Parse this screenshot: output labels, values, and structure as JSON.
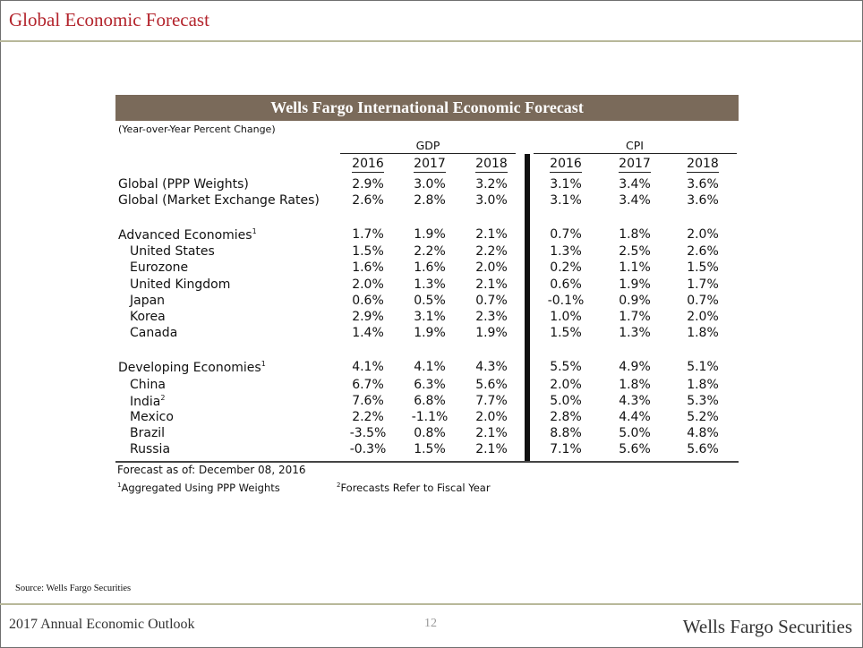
{
  "page_title": "Global Economic Forecast",
  "table": {
    "title": "Wells Fargo International Economic Forecast",
    "subtitle": "(Year-over-Year Percent Change)",
    "group_headers": {
      "gdp": "GDP",
      "cpi": "CPI"
    },
    "years": [
      "2016",
      "2017",
      "2018",
      "2016",
      "2017",
      "2018"
    ],
    "rows": [
      {
        "label": "Global (PPP Weights)",
        "sup": "",
        "indent": false,
        "values": [
          "2.9%",
          "3.0%",
          "3.2%",
          "3.1%",
          "3.4%",
          "3.6%"
        ]
      },
      {
        "label": "Global (Market Exchange Rates)",
        "sup": "",
        "indent": false,
        "values": [
          "2.6%",
          "2.8%",
          "3.0%",
          "3.1%",
          "3.4%",
          "3.6%"
        ]
      },
      {
        "label": "Advanced Economies",
        "sup": "1",
        "indent": false,
        "values": [
          "1.7%",
          "1.9%",
          "2.1%",
          "0.7%",
          "1.8%",
          "2.0%"
        ]
      },
      {
        "label": "United States",
        "sup": "",
        "indent": true,
        "values": [
          "1.5%",
          "2.2%",
          "2.2%",
          "1.3%",
          "2.5%",
          "2.6%"
        ]
      },
      {
        "label": "Eurozone",
        "sup": "",
        "indent": true,
        "values": [
          "1.6%",
          "1.6%",
          "2.0%",
          "0.2%",
          "1.1%",
          "1.5%"
        ]
      },
      {
        "label": "United Kingdom",
        "sup": "",
        "indent": true,
        "values": [
          "2.0%",
          "1.3%",
          "2.1%",
          "0.6%",
          "1.9%",
          "1.7%"
        ]
      },
      {
        "label": "Japan",
        "sup": "",
        "indent": true,
        "values": [
          "0.6%",
          "0.5%",
          "0.7%",
          "-0.1%",
          "0.9%",
          "0.7%"
        ]
      },
      {
        "label": "Korea",
        "sup": "",
        "indent": true,
        "values": [
          "2.9%",
          "3.1%",
          "2.3%",
          "1.0%",
          "1.7%",
          "2.0%"
        ]
      },
      {
        "label": "Canada",
        "sup": "",
        "indent": true,
        "values": [
          "1.4%",
          "1.9%",
          "1.9%",
          "1.5%",
          "1.3%",
          "1.8%"
        ]
      },
      {
        "label": "Developing Economies",
        "sup": "1",
        "indent": false,
        "values": [
          "4.1%",
          "4.1%",
          "4.3%",
          "5.5%",
          "4.9%",
          "5.1%"
        ]
      },
      {
        "label": "China",
        "sup": "",
        "indent": true,
        "values": [
          "6.7%",
          "6.3%",
          "5.6%",
          "2.0%",
          "1.8%",
          "1.8%"
        ]
      },
      {
        "label": "India",
        "sup": "2",
        "indent": true,
        "values": [
          "7.6%",
          "6.8%",
          "7.7%",
          "5.0%",
          "4.3%",
          "5.3%"
        ]
      },
      {
        "label": "Mexico",
        "sup": "",
        "indent": true,
        "values": [
          "2.2%",
          "-1.1%",
          "2.0%",
          "2.8%",
          "4.4%",
          "5.2%"
        ]
      },
      {
        "label": "Brazil",
        "sup": "",
        "indent": true,
        "values": [
          "-3.5%",
          "0.8%",
          "2.1%",
          "8.8%",
          "5.0%",
          "4.8%"
        ]
      },
      {
        "label": "Russia",
        "sup": "",
        "indent": true,
        "values": [
          "-0.3%",
          "1.5%",
          "2.1%",
          "7.1%",
          "5.6%",
          "5.6%"
        ]
      }
    ],
    "forecast_date": "Forecast as of: December 08, 2016",
    "footnote1": {
      "mark": "1",
      "text": "Aggregated Using PPP Weights"
    },
    "footnote2": {
      "mark": "2",
      "text": "Forecasts Refer to Fiscal Year"
    }
  },
  "source": "Source: Wells Fargo Securities",
  "footer": {
    "left": "2017 Annual Economic Outlook",
    "page": "12",
    "right": "Wells Fargo Securities"
  },
  "colors": {
    "title_red": "#b3242c",
    "banner_brown": "#7a6a5a",
    "rule_khaki": "#b8b89a"
  }
}
